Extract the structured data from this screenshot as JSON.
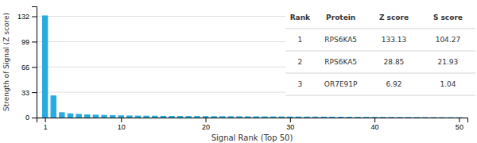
{
  "chart_data": {
    "type": "bar",
    "x": [
      1,
      2,
      3,
      4,
      5,
      6,
      7,
      8,
      9,
      10,
      11,
      12,
      13,
      14,
      15,
      16,
      17,
      18,
      19,
      20,
      21,
      22,
      23,
      24,
      25,
      26,
      27,
      28,
      29,
      30,
      31,
      32,
      33,
      34,
      35,
      36,
      37,
      38,
      39,
      40,
      41,
      42,
      43,
      44,
      45,
      46,
      47,
      48,
      49,
      50
    ],
    "values": [
      133.13,
      28.85,
      6.92,
      5.5,
      4.8,
      4.2,
      3.8,
      3.4,
      3.1,
      2.9,
      2.7,
      2.5,
      2.4,
      2.3,
      2.2,
      2.1,
      2.05,
      2.0,
      1.95,
      1.9,
      1.85,
      1.8,
      1.75,
      1.7,
      1.65,
      1.6,
      1.55,
      1.5,
      1.45,
      1.4,
      1.35,
      1.3,
      1.25,
      1.2,
      1.15,
      1.1,
      1.05,
      1.0,
      0.95,
      0.9,
      0.85,
      0.8,
      0.75,
      0.7,
      0.65,
      0.6,
      0.55,
      0.5,
      0.45,
      0.4
    ],
    "color": "#29ABE2",
    "xlabel": "Signal Rank (Top 50)",
    "ylabel": "Strength of Signal (Z score)",
    "xlim": [
      0,
      51
    ],
    "ylim": [
      0,
      145
    ],
    "xticks": [
      1,
      10,
      20,
      30,
      40,
      50
    ],
    "yticks": [
      0,
      33,
      66,
      99,
      132
    ],
    "grid": true,
    "table": {
      "headers": [
        "Rank",
        "Protein",
        "Z score",
        "S score"
      ],
      "rows": [
        [
          "1",
          "RPS6KA5",
          "133.13",
          "104.27"
        ],
        [
          "2",
          "RPS6KA5",
          "28.85",
          "21.93"
        ],
        [
          "3",
          "OR7E91P",
          "6.92",
          "1.04"
        ]
      ]
    }
  }
}
